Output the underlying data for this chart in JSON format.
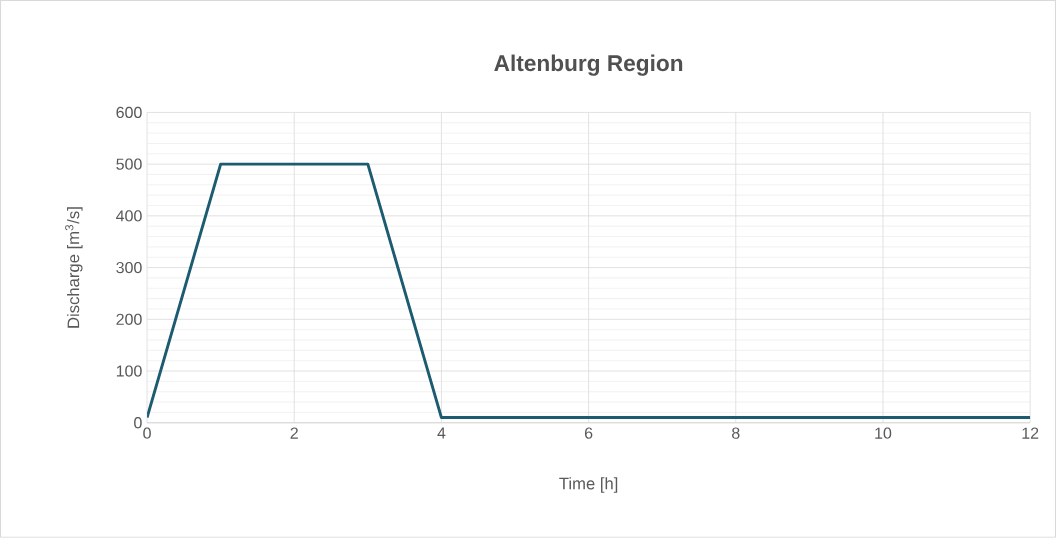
{
  "chart_data": {
    "type": "line",
    "title": "Altenburg Region",
    "xlabel": "Time [h]",
    "ylabel": "Discharge [m$^{3}$/s]",
    "x": [
      0,
      1,
      3,
      4,
      12
    ],
    "series": [
      {
        "color": "#1d5b70",
        "values": [
          10,
          500,
          500,
          10,
          10
        ]
      }
    ],
    "xlim": [
      0,
      12
    ],
    "ylim": [
      0,
      600
    ],
    "xticks": [
      0,
      2,
      4,
      6,
      8,
      10,
      12
    ],
    "yticks": [
      0,
      100,
      200,
      300,
      400,
      500,
      600
    ],
    "grid": true,
    "marker": "none",
    "line_style": "solid"
  }
}
